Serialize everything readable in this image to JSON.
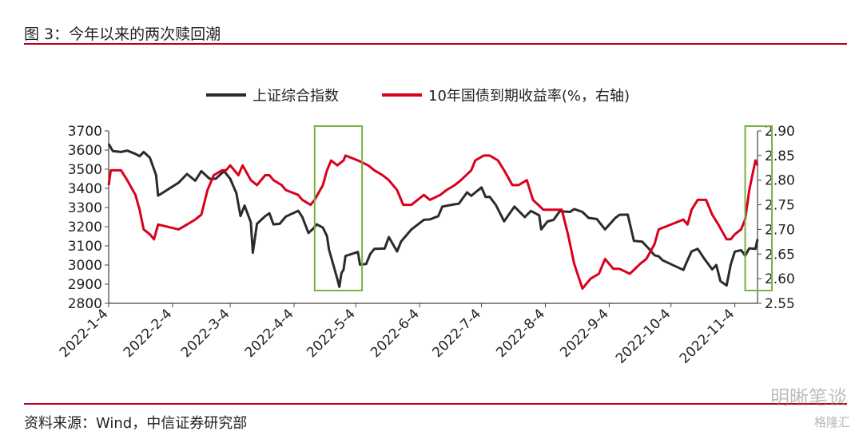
{
  "header": {
    "title": "图 3：今年以来的两次赎回潮"
  },
  "footer": {
    "source": "资料来源：Wind，中信证券研究部"
  },
  "watermark": {
    "text": "明晰笔谈",
    "logo": "格隆汇"
  },
  "colors": {
    "left_series": "#2b2b2b",
    "right_series": "#d9001b",
    "highlight_box": "#77b341",
    "rule": "#c0001a"
  },
  "chart_data": {
    "type": "line",
    "x_ticks": [
      "2022-1-4",
      "2022-2-4",
      "2022-3-4",
      "2022-4-4",
      "2022-5-4",
      "2022-6-4",
      "2022-7-4",
      "2022-8-4",
      "2022-9-4",
      "2022-10-4",
      "2022-11-4"
    ],
    "x_range": [
      "2022-01-04",
      "2022-11-15"
    ],
    "y_left": {
      "ticks": [
        "3700",
        "3600",
        "3500",
        "3400",
        "3300",
        "3200",
        "3100",
        "3000",
        "2900",
        "2800"
      ],
      "range": [
        2800,
        3700
      ]
    },
    "y_right": {
      "ticks": [
        "2.90",
        "2.85",
        "2.80",
        "2.75",
        "2.70",
        "2.65",
        "2.60",
        "2.55"
      ],
      "range": [
        2.55,
        2.9
      ]
    },
    "legend": [
      "上证综合指数",
      "10年国债到期收益率(%，右轴)"
    ],
    "series": [
      {
        "name": "上证综合指数",
        "axis": "left",
        "points": [
          [
            "2022-01-04",
            3632
          ],
          [
            "2022-01-06",
            3595
          ],
          [
            "2022-01-10",
            3590
          ],
          [
            "2022-01-13",
            3597
          ],
          [
            "2022-01-17",
            3580
          ],
          [
            "2022-01-19",
            3568
          ],
          [
            "2022-01-21",
            3590
          ],
          [
            "2022-01-24",
            3560
          ],
          [
            "2022-01-27",
            3470
          ],
          [
            "2022-01-28",
            3362
          ],
          [
            "2022-02-07",
            3430
          ],
          [
            "2022-02-11",
            3475
          ],
          [
            "2022-02-15",
            3440
          ],
          [
            "2022-02-18",
            3490
          ],
          [
            "2022-02-22",
            3450
          ],
          [
            "2022-02-25",
            3450
          ],
          [
            "2022-03-01",
            3490
          ],
          [
            "2022-03-04",
            3450
          ],
          [
            "2022-03-07",
            3375
          ],
          [
            "2022-03-09",
            3256
          ],
          [
            "2022-03-11",
            3310
          ],
          [
            "2022-03-14",
            3223
          ],
          [
            "2022-03-15",
            3064
          ],
          [
            "2022-03-17",
            3215
          ],
          [
            "2022-03-21",
            3255
          ],
          [
            "2022-03-23",
            3270
          ],
          [
            "2022-03-25",
            3212
          ],
          [
            "2022-03-28",
            3215
          ],
          [
            "2022-03-31",
            3253
          ],
          [
            "2022-04-06",
            3283
          ],
          [
            "2022-04-08",
            3251
          ],
          [
            "2022-04-11",
            3167
          ],
          [
            "2022-04-13",
            3187
          ],
          [
            "2022-04-15",
            3212
          ],
          [
            "2022-04-18",
            3195
          ],
          [
            "2022-04-20",
            3151
          ],
          [
            "2022-04-21",
            3079
          ],
          [
            "2022-04-25",
            2928
          ],
          [
            "2022-04-26",
            2886
          ],
          [
            "2022-04-27",
            2958
          ],
          [
            "2022-04-28",
            2975
          ],
          [
            "2022-04-29",
            3047
          ],
          [
            "2022-05-05",
            3068
          ],
          [
            "2022-05-06",
            3002
          ],
          [
            "2022-05-09",
            3005
          ],
          [
            "2022-05-11",
            3058
          ],
          [
            "2022-05-13",
            3084
          ],
          [
            "2022-05-18",
            3086
          ],
          [
            "2022-05-20",
            3146
          ],
          [
            "2022-05-24",
            3071
          ],
          [
            "2022-05-26",
            3123
          ],
          [
            "2022-05-31",
            3186
          ],
          [
            "2022-06-06",
            3236
          ],
          [
            "2022-06-09",
            3238
          ],
          [
            "2022-06-13",
            3255
          ],
          [
            "2022-06-15",
            3305
          ],
          [
            "2022-06-20",
            3315
          ],
          [
            "2022-06-23",
            3320
          ],
          [
            "2022-06-27",
            3379
          ],
          [
            "2022-06-29",
            3361
          ],
          [
            "2022-07-04",
            3405
          ],
          [
            "2022-07-06",
            3355
          ],
          [
            "2022-07-08",
            3356
          ],
          [
            "2022-07-11",
            3313
          ],
          [
            "2022-07-15",
            3228
          ],
          [
            "2022-07-20",
            3305
          ],
          [
            "2022-07-25",
            3250
          ],
          [
            "2022-07-28",
            3282
          ],
          [
            "2022-08-01",
            3259
          ],
          [
            "2022-08-02",
            3186
          ],
          [
            "2022-08-05",
            3227
          ],
          [
            "2022-08-08",
            3236
          ],
          [
            "2022-08-11",
            3281
          ],
          [
            "2022-08-16",
            3277
          ],
          [
            "2022-08-18",
            3292
          ],
          [
            "2022-08-22",
            3277
          ],
          [
            "2022-08-25",
            3246
          ],
          [
            "2022-08-29",
            3240
          ],
          [
            "2022-09-02",
            3186
          ],
          [
            "2022-09-07",
            3246
          ],
          [
            "2022-09-09",
            3262
          ],
          [
            "2022-09-13",
            3263
          ],
          [
            "2022-09-16",
            3126
          ],
          [
            "2022-09-20",
            3122
          ],
          [
            "2022-09-23",
            3088
          ],
          [
            "2022-09-26",
            3051
          ],
          [
            "2022-09-28",
            3045
          ],
          [
            "2022-09-30",
            3024
          ],
          [
            "2022-10-10",
            2974
          ],
          [
            "2022-10-12",
            3025
          ],
          [
            "2022-10-14",
            3071
          ],
          [
            "2022-10-17",
            3084
          ],
          [
            "2022-10-20",
            3035
          ],
          [
            "2022-10-24",
            2977
          ],
          [
            "2022-10-26",
            3000
          ],
          [
            "2022-10-28",
            2916
          ],
          [
            "2022-10-31",
            2893
          ],
          [
            "2022-11-02",
            3003
          ],
          [
            "2022-11-04",
            3070
          ],
          [
            "2022-11-07",
            3077
          ],
          [
            "2022-11-08",
            3064
          ],
          [
            "2022-11-09",
            3048
          ],
          [
            "2022-11-11",
            3087
          ],
          [
            "2022-11-14",
            3084
          ],
          [
            "2022-11-15",
            3135
          ]
        ]
      },
      {
        "name": "10年国债到期收益率(%，右轴)",
        "axis": "right",
        "points": [
          [
            "2022-01-04",
            2.79
          ],
          [
            "2022-01-05",
            2.82
          ],
          [
            "2022-01-10",
            2.82
          ],
          [
            "2022-01-13",
            2.8
          ],
          [
            "2022-01-17",
            2.77
          ],
          [
            "2022-01-19",
            2.74
          ],
          [
            "2022-01-21",
            2.7
          ],
          [
            "2022-01-24",
            2.69
          ],
          [
            "2022-01-26",
            2.68
          ],
          [
            "2022-01-28",
            2.71
          ],
          [
            "2022-02-07",
            2.7
          ],
          [
            "2022-02-11",
            2.71
          ],
          [
            "2022-02-15",
            2.72
          ],
          [
            "2022-02-18",
            2.73
          ],
          [
            "2022-02-21",
            2.78
          ],
          [
            "2022-02-24",
            2.81
          ],
          [
            "2022-02-28",
            2.82
          ],
          [
            "2022-03-02",
            2.82
          ],
          [
            "2022-03-04",
            2.83
          ],
          [
            "2022-03-08",
            2.81
          ],
          [
            "2022-03-10",
            2.83
          ],
          [
            "2022-03-14",
            2.8
          ],
          [
            "2022-03-17",
            2.79
          ],
          [
            "2022-03-21",
            2.81
          ],
          [
            "2022-03-23",
            2.81
          ],
          [
            "2022-03-25",
            2.8
          ],
          [
            "2022-03-29",
            2.79
          ],
          [
            "2022-03-31",
            2.78
          ],
          [
            "2022-04-06",
            2.77
          ],
          [
            "2022-04-08",
            2.76
          ],
          [
            "2022-04-12",
            2.75
          ],
          [
            "2022-04-14",
            2.76
          ],
          [
            "2022-04-18",
            2.79
          ],
          [
            "2022-04-20",
            2.82
          ],
          [
            "2022-04-22",
            2.84
          ],
          [
            "2022-04-25",
            2.83
          ],
          [
            "2022-04-28",
            2.84
          ],
          [
            "2022-04-29",
            2.85
          ],
          [
            "2022-05-05",
            2.84
          ],
          [
            "2022-05-10",
            2.83
          ],
          [
            "2022-05-13",
            2.82
          ],
          [
            "2022-05-17",
            2.81
          ],
          [
            "2022-05-20",
            2.8
          ],
          [
            "2022-05-24",
            2.78
          ],
          [
            "2022-05-27",
            2.75
          ],
          [
            "2022-05-31",
            2.75
          ],
          [
            "2022-06-06",
            2.77
          ],
          [
            "2022-06-09",
            2.76
          ],
          [
            "2022-06-14",
            2.77
          ],
          [
            "2022-06-17",
            2.78
          ],
          [
            "2022-06-21",
            2.79
          ],
          [
            "2022-06-24",
            2.8
          ],
          [
            "2022-06-29",
            2.82
          ],
          [
            "2022-07-01",
            2.84
          ],
          [
            "2022-07-05",
            2.85
          ],
          [
            "2022-07-08",
            2.85
          ],
          [
            "2022-07-12",
            2.84
          ],
          [
            "2022-07-15",
            2.82
          ],
          [
            "2022-07-19",
            2.79
          ],
          [
            "2022-07-22",
            2.79
          ],
          [
            "2022-07-26",
            2.8
          ],
          [
            "2022-07-29",
            2.76
          ],
          [
            "2022-08-03",
            2.74
          ],
          [
            "2022-08-08",
            2.74
          ],
          [
            "2022-08-12",
            2.74
          ],
          [
            "2022-08-15",
            2.69
          ],
          [
            "2022-08-18",
            2.63
          ],
          [
            "2022-08-22",
            2.58
          ],
          [
            "2022-08-26",
            2.6
          ],
          [
            "2022-08-30",
            2.61
          ],
          [
            "2022-09-02",
            2.64
          ],
          [
            "2022-09-06",
            2.62
          ],
          [
            "2022-09-09",
            2.62
          ],
          [
            "2022-09-14",
            2.61
          ],
          [
            "2022-09-19",
            2.63
          ],
          [
            "2022-09-22",
            2.64
          ],
          [
            "2022-09-26",
            2.67
          ],
          [
            "2022-09-28",
            2.7
          ],
          [
            "2022-10-10",
            2.72
          ],
          [
            "2022-10-12",
            2.71
          ],
          [
            "2022-10-14",
            2.74
          ],
          [
            "2022-10-17",
            2.76
          ],
          [
            "2022-10-21",
            2.76
          ],
          [
            "2022-10-24",
            2.73
          ],
          [
            "2022-10-27",
            2.71
          ],
          [
            "2022-10-31",
            2.68
          ],
          [
            "2022-11-02",
            2.68
          ],
          [
            "2022-11-04",
            2.69
          ],
          [
            "2022-11-07",
            2.7
          ],
          [
            "2022-11-09",
            2.72
          ],
          [
            "2022-11-11",
            2.78
          ],
          [
            "2022-11-14",
            2.84
          ],
          [
            "2022-11-15",
            2.83
          ]
        ]
      }
    ],
    "highlights": [
      {
        "from": "2022-04-14",
        "to": "2022-05-07"
      },
      {
        "from": "2022-11-09",
        "to": "2022-11-22"
      }
    ]
  }
}
